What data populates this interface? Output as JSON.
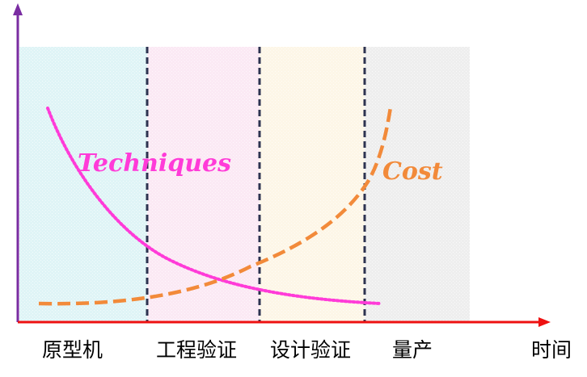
{
  "diagram": {
    "phases": [
      {
        "label": "原型机",
        "fill": "#dff4f6"
      },
      {
        "label": "工程验证",
        "fill": "#fbe9f4"
      },
      {
        "label": "设计验证",
        "fill": "#fdf6e7"
      },
      {
        "label": "量产",
        "fill": "#eeeeee"
      }
    ],
    "x_axis_label": "时间",
    "curves": {
      "techniques": {
        "label": "Techniques",
        "color": "#ff3bd8"
      },
      "cost": {
        "label": "Cost",
        "color": "#f28a3a"
      }
    },
    "colors": {
      "y_axis": "#7a2da2",
      "x_axis": "#ee1111",
      "divider": "#2d3350"
    }
  }
}
